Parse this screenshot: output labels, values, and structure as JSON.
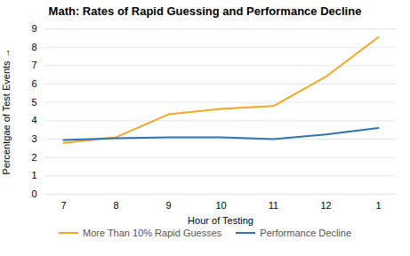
{
  "chart_data": {
    "type": "line",
    "title": "Math: Rates of Rapid Guessing and Performance Decline",
    "xlabel": "Hour of Testing",
    "ylabel": "Percentgae of Test Events",
    "categories": [
      "7",
      "8",
      "9",
      "10",
      "11",
      "12",
      "1"
    ],
    "series": [
      {
        "name": "More Than 10% Rapid Guesses",
        "color": "#F5A623",
        "values": [
          2.8,
          3.1,
          4.35,
          4.65,
          4.8,
          6.4,
          8.55
        ]
      },
      {
        "name": "Performance Decline",
        "color": "#3070B3",
        "values": [
          2.95,
          3.05,
          3.1,
          3.1,
          3.0,
          3.25,
          3.6
        ]
      }
    ],
    "ylim": [
      0,
      9
    ],
    "yticks": [
      0,
      1,
      2,
      3,
      4,
      5,
      6,
      7,
      8,
      9
    ],
    "grid": true,
    "legend": "bottom"
  }
}
